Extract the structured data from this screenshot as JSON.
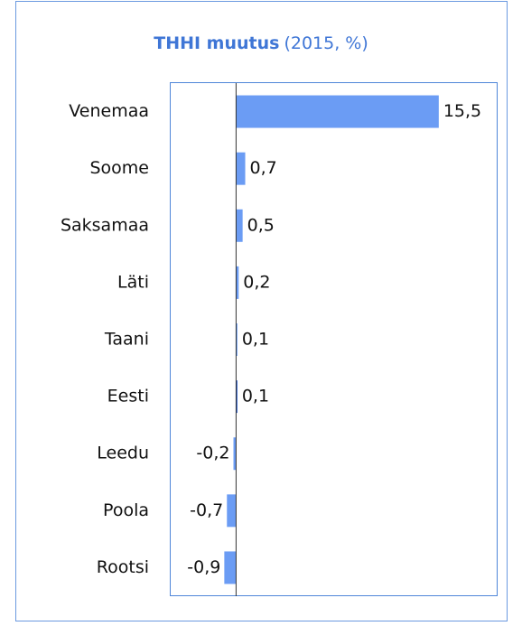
{
  "chart_data": {
    "type": "bar",
    "orientation": "horizontal",
    "title": "THHI muutus",
    "subtitle": "(2015, %)",
    "categories": [
      "Venemaa",
      "Soome",
      "Saksamaa",
      "Läti",
      "Taani",
      "Eesti",
      "Leedu",
      "Poola",
      "Rootsi"
    ],
    "values": [
      15.5,
      0.7,
      0.5,
      0.2,
      0.1,
      0.1,
      -0.2,
      -0.7,
      -0.9
    ],
    "value_labels": [
      "15,5",
      "0,7",
      "0,5",
      "0,2",
      "0,1",
      "0,1",
      "-0,2",
      "-0,7",
      "-0,9"
    ],
    "color": "#6b9cf4",
    "colors": [
      "#6b9cf4",
      "#6b9cf4",
      "#6b9cf4",
      "#6b9cf4",
      "#6b9cf4",
      "#2358c9",
      "#6b9cf4",
      "#6b9cf4",
      "#6b9cf4"
    ],
    "xlim": [
      -5,
      20
    ]
  }
}
